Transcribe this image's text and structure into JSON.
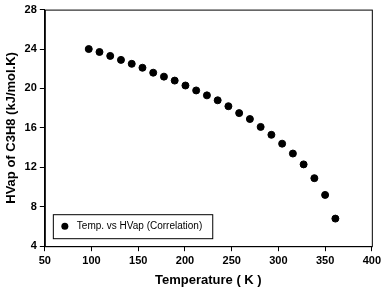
{
  "chart_data": {
    "type": "scatter",
    "x_label": "Temperature ( K )",
    "y_label": "HVap of C3H8 (kJ/mol.K)",
    "x": [
      97,
      108.5,
      120,
      131.5,
      143,
      154.5,
      166,
      177.5,
      189,
      200.5,
      212,
      223.5,
      235,
      246.5,
      258,
      269.5,
      281,
      292.5,
      304,
      315.5,
      327,
      338.5,
      350,
      361
    ],
    "series": [
      {
        "name": "Temp. vs HVap (Correlation)",
        "color": "#000000",
        "marker": "circle",
        "values": [
          24.0,
          23.7,
          23.3,
          22.9,
          22.5,
          22.1,
          21.6,
          21.2,
          20.8,
          20.3,
          19.8,
          19.3,
          18.8,
          18.2,
          17.5,
          16.9,
          16.1,
          15.3,
          14.4,
          13.4,
          12.3,
          10.9,
          9.2,
          6.8
        ]
      }
    ],
    "xlim": [
      50,
      400
    ],
    "xticks": [
      50,
      100,
      150,
      200,
      250,
      300,
      350,
      400
    ],
    "ylim": [
      4,
      28
    ],
    "yticks": [
      4,
      8,
      12,
      16,
      20,
      24,
      28
    ],
    "grid": false,
    "legend": "lower left"
  }
}
